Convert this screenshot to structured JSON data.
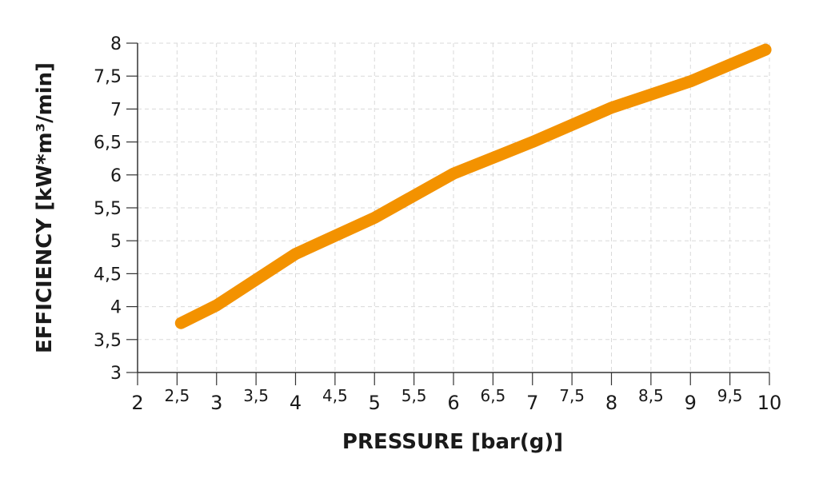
{
  "chart_data": {
    "type": "line",
    "title": "",
    "xlabel": "PRESSURE [bar(g)]",
    "ylabel": "EFFICIENCY  [kW*m³/min]",
    "xlim": [
      2,
      10
    ],
    "ylim": [
      3,
      8
    ],
    "x_ticks": [
      2,
      2.5,
      3,
      3.5,
      4,
      4.5,
      5,
      5.5,
      6,
      6.5,
      7,
      7.5,
      8,
      8.5,
      9,
      9.5,
      10
    ],
    "x_tick_labels": [
      "2",
      "2,5",
      "3",
      "3,5",
      "4",
      "4,5",
      "5",
      "5,5",
      "6",
      "6,5",
      "7",
      "7,5",
      "8",
      "8,5",
      "9",
      "9,5",
      "10"
    ],
    "y_ticks": [
      3,
      3.5,
      4,
      4.5,
      5,
      5.5,
      6,
      6.5,
      7,
      7.5,
      8
    ],
    "y_tick_labels": [
      "3",
      "3,5",
      "4",
      "4,5",
      "5",
      "5,5",
      "6",
      "6,5",
      "7",
      "7,5",
      "8"
    ],
    "grid": true,
    "line_color": "#F39200",
    "series": [
      {
        "x": [
          2.55,
          3,
          4,
          5,
          6,
          7,
          8,
          9,
          9.95
        ],
        "y": [
          3.75,
          4.02,
          4.8,
          5.35,
          6.02,
          6.5,
          7.02,
          7.42,
          7.9
        ]
      }
    ]
  }
}
